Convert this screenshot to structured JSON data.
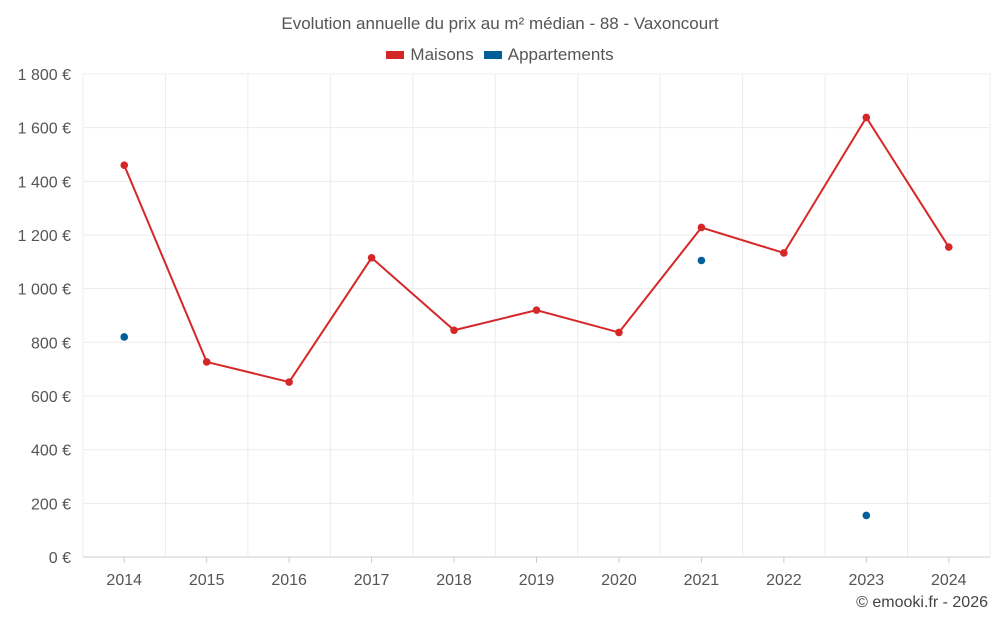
{
  "chart_data": {
    "type": "line",
    "title": "Evolution annuelle du prix au m² médian - 88 - Vaxoncourt",
    "categories": [
      "2014",
      "2015",
      "2016",
      "2017",
      "2018",
      "2019",
      "2020",
      "2021",
      "2022",
      "2023",
      "2024"
    ],
    "series": [
      {
        "name": "Maisons",
        "color": "#d62728",
        "values": [
          1460,
          727,
          652,
          1115,
          845,
          920,
          837,
          1228,
          1133,
          1638,
          1155
        ]
      },
      {
        "name": "Appartements",
        "color": "#005f99",
        "values": [
          820,
          null,
          null,
          null,
          null,
          null,
          null,
          1105,
          null,
          155,
          null
        ]
      }
    ],
    "ylim": [
      0,
      1800
    ],
    "yticks": [
      0,
      200,
      400,
      600,
      800,
      1000,
      1200,
      1400,
      1600,
      1800
    ],
    "ytick_labels": [
      "0 €",
      "200 €",
      "400 €",
      "600 €",
      "800 €",
      "1 000 €",
      "1 200 €",
      "1 400 €",
      "1 600 €",
      "1 800 €"
    ],
    "grid": true,
    "legend_position": "top-center"
  },
  "credit": "© emooki.fr - 2026"
}
